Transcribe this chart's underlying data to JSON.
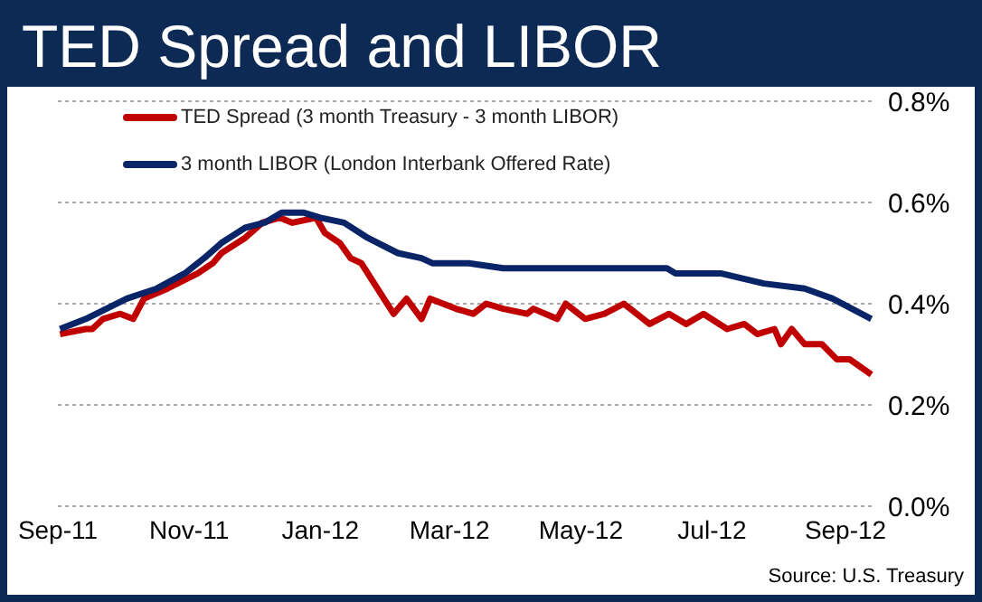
{
  "chart_data": {
    "type": "line",
    "title": "TED Spread and LIBOR",
    "annotations": [
      "Source:  U.S. Treasury"
    ],
    "xlim": [
      "2011-09-01",
      "2012-09-14"
    ],
    "xticks": [
      {
        "value": "2011-09-01",
        "label": "Sep-11"
      },
      {
        "value": "2011-11-01",
        "label": "Nov-11"
      },
      {
        "value": "2012-01-01",
        "label": "Jan-12"
      },
      {
        "value": "2012-03-01",
        "label": "Mar-12"
      },
      {
        "value": "2012-05-01",
        "label": "May-12"
      },
      {
        "value": "2012-07-01",
        "label": "Jul-12"
      },
      {
        "value": "2012-09-01",
        "label": "Sep-12"
      }
    ],
    "ylim": [
      0,
      0.8
    ],
    "yticks": [
      {
        "value": 0,
        "label": "0.0%"
      },
      {
        "value": 0.2,
        "label": "0.2%"
      },
      {
        "value": 0.4,
        "label": "0.4%"
      },
      {
        "value": 0.6,
        "label": "0.6%"
      },
      {
        "value": 0.8,
        "label": "0.8%"
      }
    ],
    "grid": "y",
    "legend": "top left",
    "marker": "none",
    "line_style": "solid",
    "series": [
      {
        "name": "TED Spread (3 month Treasury - 3 month LIBOR)",
        "color": "#c00000",
        "x": [
          "2011-09-02",
          "2011-09-14",
          "2011-09-17",
          "2011-09-22",
          "2011-09-30",
          "2011-10-06",
          "2011-10-11",
          "2011-10-22",
          "2011-11-05",
          "2011-11-12",
          "2011-11-16",
          "2011-11-27",
          "2011-12-05",
          "2011-12-13",
          "2011-12-19",
          "2011-12-30",
          "2012-01-03",
          "2012-01-10",
          "2012-01-15",
          "2012-01-20",
          "2012-01-26",
          "2012-02-04",
          "2012-02-10",
          "2012-02-17",
          "2012-02-21",
          "2012-03-04",
          "2012-03-12",
          "2012-03-18",
          "2012-03-26",
          "2012-04-06",
          "2012-04-09",
          "2012-04-20",
          "2012-04-24",
          "2012-05-03",
          "2012-05-12",
          "2012-05-21",
          "2012-06-02",
          "2012-06-11",
          "2012-06-19",
          "2012-06-27",
          "2012-07-08",
          "2012-07-16",
          "2012-07-22",
          "2012-07-30",
          "2012-08-02",
          "2012-08-07",
          "2012-08-13",
          "2012-08-21",
          "2012-08-28",
          "2012-09-03",
          "2012-09-13"
        ],
        "values": [
          0.34,
          0.35,
          0.35,
          0.37,
          0.38,
          0.37,
          0.41,
          0.43,
          0.46,
          0.48,
          0.5,
          0.53,
          0.56,
          0.57,
          0.56,
          0.57,
          0.54,
          0.52,
          0.49,
          0.48,
          0.44,
          0.38,
          0.41,
          0.37,
          0.41,
          0.39,
          0.38,
          0.4,
          0.39,
          0.38,
          0.39,
          0.37,
          0.4,
          0.37,
          0.38,
          0.4,
          0.36,
          0.38,
          0.36,
          0.38,
          0.35,
          0.36,
          0.34,
          0.35,
          0.32,
          0.35,
          0.32,
          0.32,
          0.29,
          0.29,
          0.26
        ]
      },
      {
        "name": "3 month LIBOR (London Interbank Offered Rate)",
        "color": "#0a2468",
        "x": [
          "2011-09-02",
          "2011-09-14",
          "2011-10-03",
          "2011-10-17",
          "2011-10-30",
          "2011-11-08",
          "2011-11-16",
          "2011-11-27",
          "2011-12-06",
          "2011-12-14",
          "2011-12-24",
          "2012-01-01",
          "2012-01-12",
          "2012-01-23",
          "2012-02-06",
          "2012-02-17",
          "2012-02-22",
          "2012-03-10",
          "2012-03-26",
          "2012-04-06",
          "2012-05-04",
          "2012-06-10",
          "2012-06-14",
          "2012-07-05",
          "2012-07-25",
          "2012-08-13",
          "2012-08-26",
          "2012-09-04",
          "2012-09-13"
        ],
        "values": [
          0.35,
          0.37,
          0.41,
          0.43,
          0.46,
          0.49,
          0.52,
          0.55,
          0.56,
          0.58,
          0.58,
          0.57,
          0.56,
          0.53,
          0.5,
          0.49,
          0.48,
          0.48,
          0.47,
          0.47,
          0.47,
          0.47,
          0.46,
          0.46,
          0.44,
          0.43,
          0.41,
          0.39,
          0.37
        ]
      }
    ]
  }
}
